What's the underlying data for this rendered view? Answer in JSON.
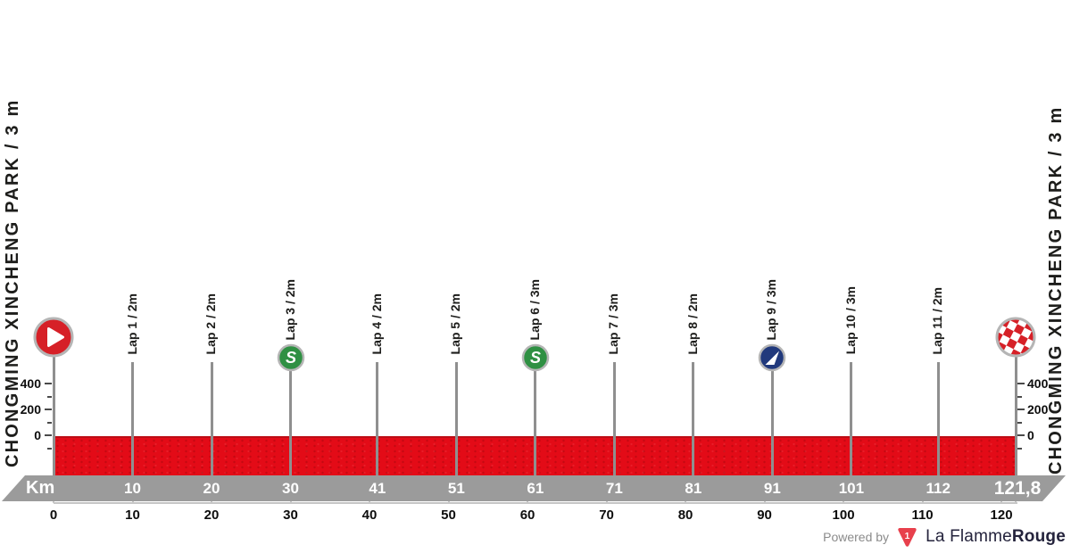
{
  "side_label_left": "CHONGMING XINCHENG PARK / 3 m",
  "side_label_right": "CHONGMING XINCHENG PARK / 3 m",
  "colors": {
    "profile_red": "#e30b17",
    "profile_red_dark": "#bd0d15",
    "km_band_gray": "#9b9b9b",
    "axis_gray": "#c6c6c6",
    "marker_line_gray": "#8f8f8f",
    "text_dark": "#1d1d1b",
    "sprint_green": "#2f9043",
    "feed_blue": "#21397c",
    "icon_red": "#d62027",
    "icon_ring_silver": "#b5b5b5",
    "brand_red": "#e8404c",
    "brand_text": "#24233c",
    "powered_gray": "#8b8b8b"
  },
  "chart_data": {
    "type": "area",
    "xlabel": "Km",
    "x_range_km": [
      0,
      121.8
    ],
    "grid": false,
    "profile_points": [
      {
        "km": 0,
        "elev_m": 3
      },
      {
        "km": 121.8,
        "elev_m": 3
      }
    ],
    "start": {
      "km": 0,
      "name": "CHONGMING XINCHENG PARK",
      "elev": "3 m",
      "type": "start"
    },
    "finish": {
      "km": 121.8,
      "name": "CHONGMING XINCHENG PARK",
      "elev": "3 m",
      "type": "finish"
    },
    "markers": [
      {
        "km": 10,
        "label": "Lap 1 / 2m",
        "icon": null
      },
      {
        "km": 20,
        "label": "Lap 2 / 2m",
        "icon": null
      },
      {
        "km": 30,
        "label": "Lap 3 / 2m",
        "icon": "sprint"
      },
      {
        "km": 41,
        "label": "Lap 4 / 2m",
        "icon": null
      },
      {
        "km": 51,
        "label": "Lap 5 / 2m",
        "icon": null
      },
      {
        "km": 61,
        "label": "Lap 6 / 3m",
        "icon": "sprint"
      },
      {
        "km": 71,
        "label": "Lap 7 / 3m",
        "icon": null
      },
      {
        "km": 81,
        "label": "Lap 8 / 2m",
        "icon": null
      },
      {
        "km": 91,
        "label": "Lap 9 / 3m",
        "icon": "feed"
      },
      {
        "km": 101,
        "label": "Lap 10 / 3m",
        "icon": null
      },
      {
        "km": 112,
        "label": "Lap 11 / 2m",
        "icon": null
      }
    ],
    "km_band_labels": [
      {
        "km": 10,
        "text": "10"
      },
      {
        "km": 20,
        "text": "20"
      },
      {
        "km": 30,
        "text": "30"
      },
      {
        "km": 41,
        "text": "41"
      },
      {
        "km": 51,
        "text": "51"
      },
      {
        "km": 61,
        "text": "61"
      },
      {
        "km": 71,
        "text": "71"
      },
      {
        "km": 81,
        "text": "81"
      },
      {
        "km": 91,
        "text": "91"
      },
      {
        "km": 101,
        "text": "101"
      },
      {
        "km": 112,
        "text": "112"
      }
    ],
    "km_band_final": {
      "km": 121.8,
      "text": "121,8"
    },
    "x_axis_ticks": [
      "0",
      "10",
      "20",
      "30",
      "40",
      "50",
      "60",
      "70",
      "80",
      "90",
      "100",
      "110",
      "120"
    ],
    "y_axis": {
      "unit": "m",
      "tick_labels": [
        "400",
        "200",
        "0"
      ],
      "major_tick_values": [
        400,
        200,
        0
      ],
      "minor_tick_values": [
        300,
        100,
        -100
      ]
    }
  },
  "footer": {
    "powered_by": "Powered by",
    "brand_prefix": "La Flamme",
    "brand_suffix": "Rouge",
    "badge_number": "1"
  }
}
